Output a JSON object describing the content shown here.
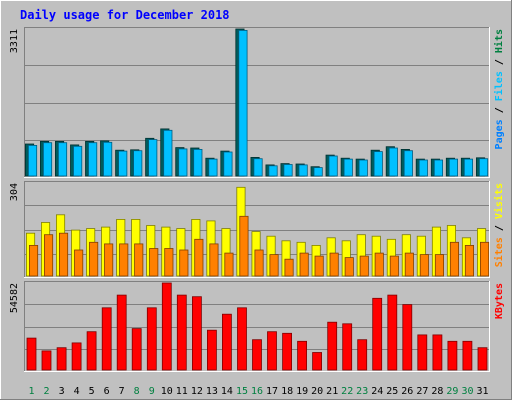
{
  "title": "Daily usage for December 2018",
  "colors": {
    "background": "#c0c0c0",
    "title": "#0000ff",
    "hits": "#008040",
    "files": "#00c0ff",
    "pages": "#0080ff",
    "visits": "#ffff00",
    "sites": "#ff8000",
    "kbytes": "#ff0000",
    "weekend_label": "#008040",
    "weekday_label": "#000000"
  },
  "chart_data": [
    {
      "type": "bar",
      "panel": "hits-files-pages",
      "ymax_label": "3311",
      "ylim": [
        0,
        3311
      ],
      "right_label": [
        {
          "text": "Pages",
          "color": "#0080ff"
        },
        {
          "text": " / ",
          "color": "#000000"
        },
        {
          "text": "Files",
          "color": "#00c0ff"
        },
        {
          "text": " / ",
          "color": "#000000"
        },
        {
          "text": "Hits",
          "color": "#008040"
        }
      ],
      "categories": [
        "1",
        "2",
        "3",
        "4",
        "5",
        "6",
        "7",
        "8",
        "9",
        "10",
        "11",
        "12",
        "13",
        "14",
        "15",
        "16",
        "17",
        "18",
        "19",
        "20",
        "21",
        "22",
        "23",
        "24",
        "25",
        "26",
        "27",
        "28",
        "29",
        "30",
        "31"
      ],
      "series": [
        {
          "name": "Hits",
          "values": [
            720,
            780,
            780,
            700,
            780,
            790,
            580,
            590,
            850,
            1060,
            640,
            630,
            400,
            560,
            3311,
            420,
            250,
            280,
            270,
            210,
            470,
            400,
            380,
            580,
            660,
            600,
            380,
            380,
            400,
            400,
            410
          ]
        },
        {
          "name": "Files",
          "values": [
            690,
            750,
            750,
            670,
            750,
            760,
            560,
            570,
            820,
            1030,
            610,
            600,
            380,
            540,
            3280,
            390,
            230,
            260,
            250,
            190,
            450,
            380,
            360,
            550,
            630,
            570,
            360,
            360,
            380,
            380,
            390
          ]
        }
      ]
    },
    {
      "type": "bar",
      "panel": "visits-sites",
      "ymax_label": "304",
      "ylim": [
        0,
        304
      ],
      "right_label": [
        {
          "text": "Sites",
          "color": "#ff8000"
        },
        {
          "text": " / ",
          "color": "#000000"
        },
        {
          "text": "Visits",
          "color": "#ffff00"
        }
      ],
      "categories": [
        "1",
        "2",
        "3",
        "4",
        "5",
        "6",
        "7",
        "8",
        "9",
        "10",
        "11",
        "12",
        "13",
        "14",
        "15",
        "16",
        "17",
        "18",
        "19",
        "20",
        "21",
        "22",
        "23",
        "24",
        "25",
        "26",
        "27",
        "28",
        "29",
        "30",
        "31"
      ],
      "series": [
        {
          "name": "Visits",
          "values": [
            140,
            175,
            200,
            150,
            155,
            160,
            185,
            185,
            165,
            160,
            155,
            185,
            180,
            155,
            290,
            145,
            130,
            115,
            110,
            100,
            125,
            115,
            135,
            130,
            120,
            135,
            130,
            160,
            165,
            125,
            155
          ]
        },
        {
          "name": "Sites",
          "values": [
            100,
            135,
            140,
            85,
            110,
            105,
            105,
            105,
            90,
            90,
            85,
            120,
            105,
            75,
            195,
            85,
            70,
            55,
            75,
            65,
            75,
            60,
            65,
            75,
            65,
            75,
            70,
            70,
            110,
            100,
            110
          ]
        }
      ]
    },
    {
      "type": "bar",
      "panel": "kbytes",
      "ymax_label": "54582",
      "ylim": [
        0,
        54582
      ],
      "right_label": [
        {
          "text": "KBytes",
          "color": "#ff0000"
        }
      ],
      "categories": [
        "1",
        "2",
        "3",
        "4",
        "5",
        "6",
        "7",
        "8",
        "9",
        "10",
        "11",
        "12",
        "13",
        "14",
        "15",
        "16",
        "17",
        "18",
        "19",
        "20",
        "21",
        "22",
        "23",
        "24",
        "25",
        "26",
        "27",
        "28",
        "29",
        "30",
        "31"
      ],
      "series": [
        {
          "name": "KBytes",
          "values": [
            20000,
            12000,
            14000,
            17000,
            24000,
            39000,
            47000,
            26000,
            39000,
            54582,
            47000,
            46000,
            25000,
            35000,
            39000,
            19000,
            24000,
            23000,
            18000,
            11000,
            30000,
            29000,
            19000,
            45000,
            47000,
            41000,
            22000,
            22000,
            18000,
            18000,
            14000
          ]
        }
      ]
    }
  ],
  "weekend_days": [
    1,
    2,
    8,
    9,
    15,
    16,
    22,
    23,
    29,
    30
  ]
}
